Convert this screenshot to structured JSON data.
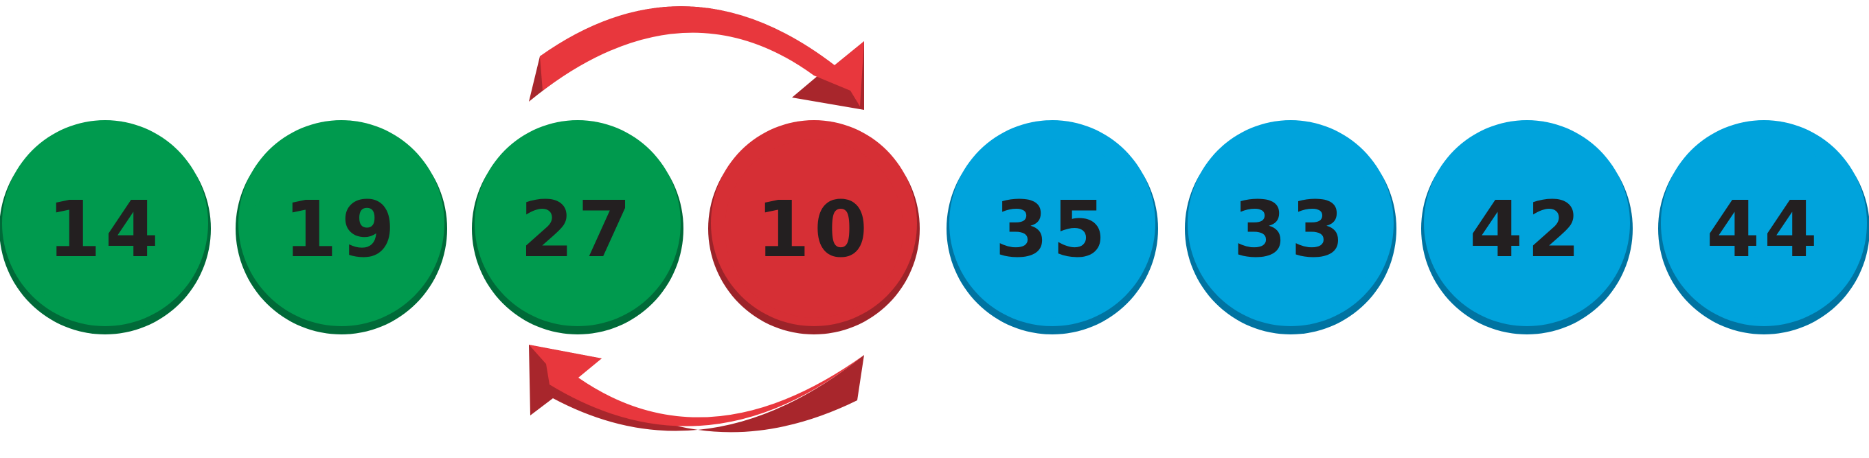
{
  "diagram": {
    "colors": {
      "green": "#009a4e",
      "green_dark": "#006a38",
      "red": "#d62f35",
      "red_dark": "#9c2329",
      "blue": "#00a3dc",
      "blue_dark": "#0073a1",
      "text": "#231f20",
      "arrow": "#e8373d",
      "arrow_dark": "#a8262c"
    },
    "balls": [
      {
        "label": "14",
        "color": "green"
      },
      {
        "label": "19",
        "color": "green"
      },
      {
        "label": "27",
        "color": "green"
      },
      {
        "label": "10",
        "color": "red"
      },
      {
        "label": "35",
        "color": "blue"
      },
      {
        "label": "33",
        "color": "blue"
      },
      {
        "label": "42",
        "color": "blue"
      },
      {
        "label": "44",
        "color": "blue"
      }
    ],
    "swap": {
      "from": "27",
      "to": "10",
      "arrows": [
        "swap-arrow-top",
        "swap-arrow-bottom"
      ]
    }
  }
}
